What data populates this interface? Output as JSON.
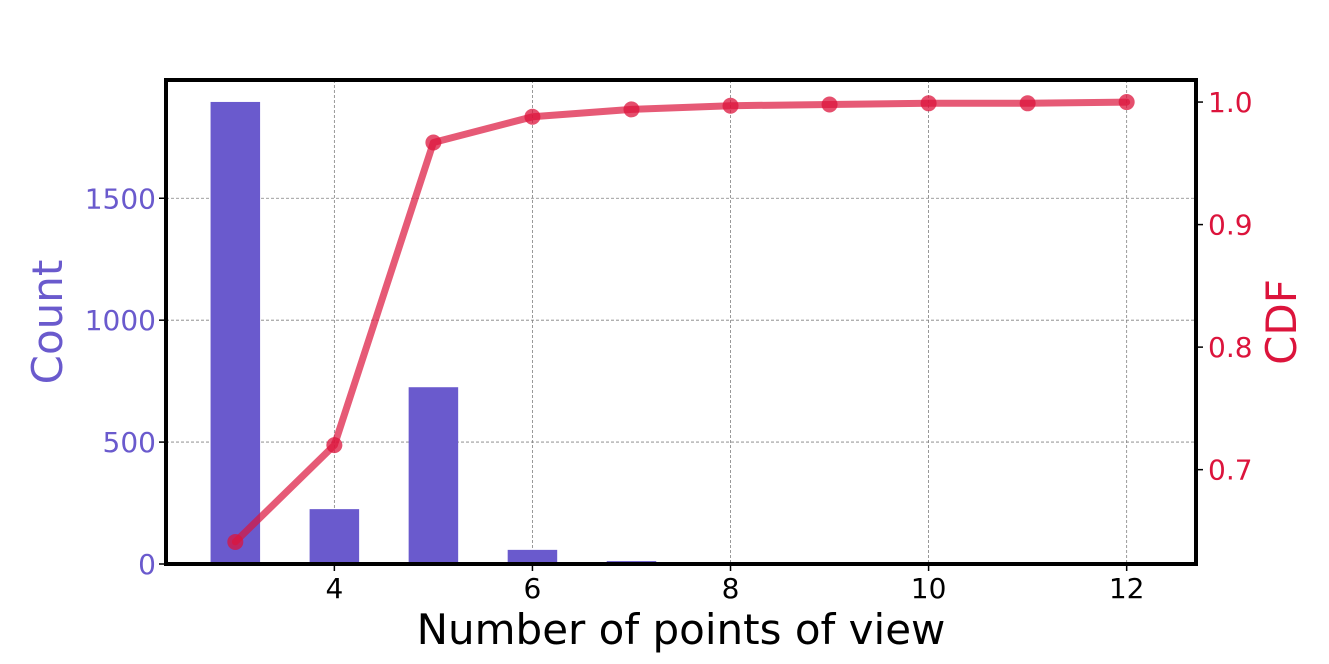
{
  "chart_data": {
    "type": "bar",
    "title": "",
    "xlabel": "Number of points of view",
    "ylabel_left": "Count",
    "ylabel_right": "CDF",
    "x_ticks": [
      "4",
      "6",
      "8",
      "10",
      "12"
    ],
    "y_left_ticks": [
      "0",
      "500",
      "1000",
      "1500"
    ],
    "y_right_ticks": [
      "0.7",
      "0.8",
      "0.9",
      "1.0"
    ],
    "xlim": [
      2.3,
      12.7
    ],
    "ylim_left": [
      0,
      1985
    ],
    "ylim_right": [
      0.623,
      1.018
    ],
    "grid": true,
    "legend": "none",
    "series": [
      {
        "kind": "bar",
        "axis": "left",
        "x": [
          3,
          4,
          5,
          6,
          7
        ],
        "values": [
          1895,
          225,
          725,
          58,
          12
        ]
      },
      {
        "kind": "line",
        "axis": "right",
        "x": [
          3,
          4,
          5,
          6,
          7,
          8,
          9,
          10,
          11,
          12
        ],
        "values": [
          0.641,
          0.72,
          0.967,
          0.988,
          0.994,
          0.997,
          0.998,
          0.999,
          0.999,
          1.0
        ]
      }
    ],
    "colors": {
      "bars": "#6a5acd",
      "line": "#dc143c",
      "left_axis_text": "#6a5acd",
      "right_axis_text": "#dc143c",
      "grid": "#808080",
      "frame": "#000000"
    }
  }
}
